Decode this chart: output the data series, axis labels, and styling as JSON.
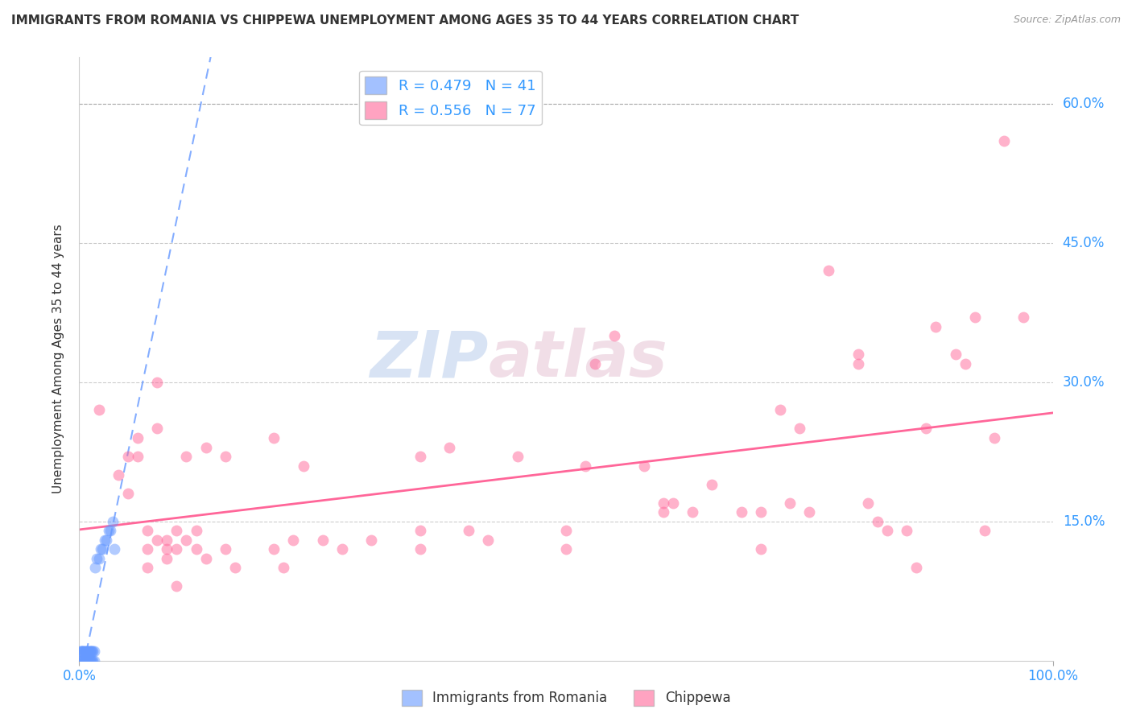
{
  "title": "IMMIGRANTS FROM ROMANIA VS CHIPPEWA UNEMPLOYMENT AMONG AGES 35 TO 44 YEARS CORRELATION CHART",
  "source": "Source: ZipAtlas.com",
  "ylabel": "Unemployment Among Ages 35 to 44 years",
  "xlim": [
    0,
    1.0
  ],
  "ylim": [
    0,
    0.65
  ],
  "xticks": [
    0.0,
    1.0
  ],
  "xticklabels": [
    "0.0%",
    "100.0%"
  ],
  "ytick_positions": [
    0.15,
    0.3,
    0.45,
    0.6
  ],
  "yticklabels_right": [
    "15.0%",
    "30.0%",
    "45.0%",
    "60.0%"
  ],
  "romania_color": "#6699ff",
  "chippewa_color": "#ff6699",
  "romania_R": 0.479,
  "romania_N": 41,
  "chippewa_R": 0.556,
  "chippewa_N": 77,
  "watermark_zip": "ZIP",
  "watermark_atlas": "atlas",
  "romania_points": [
    [
      0.001,
      0.0
    ],
    [
      0.002,
      0.0
    ],
    [
      0.003,
      0.0
    ],
    [
      0.004,
      0.0
    ],
    [
      0.005,
      0.0
    ],
    [
      0.006,
      0.0
    ],
    [
      0.007,
      0.0
    ],
    [
      0.008,
      0.0
    ],
    [
      0.009,
      0.0
    ],
    [
      0.01,
      0.0
    ],
    [
      0.011,
      0.0
    ],
    [
      0.012,
      0.0
    ],
    [
      0.013,
      0.0
    ],
    [
      0.014,
      0.0
    ],
    [
      0.015,
      0.0
    ],
    [
      0.001,
      0.01
    ],
    [
      0.002,
      0.01
    ],
    [
      0.003,
      0.01
    ],
    [
      0.004,
      0.01
    ],
    [
      0.005,
      0.01
    ],
    [
      0.006,
      0.01
    ],
    [
      0.007,
      0.01
    ],
    [
      0.008,
      0.01
    ],
    [
      0.009,
      0.01
    ],
    [
      0.01,
      0.01
    ],
    [
      0.011,
      0.01
    ],
    [
      0.012,
      0.01
    ],
    [
      0.013,
      0.01
    ],
    [
      0.014,
      0.01
    ],
    [
      0.015,
      0.01
    ],
    [
      0.016,
      0.1
    ],
    [
      0.018,
      0.11
    ],
    [
      0.02,
      0.11
    ],
    [
      0.022,
      0.12
    ],
    [
      0.024,
      0.12
    ],
    [
      0.026,
      0.13
    ],
    [
      0.028,
      0.13
    ],
    [
      0.03,
      0.14
    ],
    [
      0.032,
      0.14
    ],
    [
      0.034,
      0.15
    ],
    [
      0.036,
      0.12
    ]
  ],
  "chippewa_points": [
    [
      0.02,
      0.27
    ],
    [
      0.04,
      0.2
    ],
    [
      0.05,
      0.22
    ],
    [
      0.05,
      0.18
    ],
    [
      0.06,
      0.24
    ],
    [
      0.06,
      0.22
    ],
    [
      0.07,
      0.1
    ],
    [
      0.07,
      0.14
    ],
    [
      0.07,
      0.12
    ],
    [
      0.08,
      0.3
    ],
    [
      0.08,
      0.25
    ],
    [
      0.08,
      0.13
    ],
    [
      0.09,
      0.13
    ],
    [
      0.09,
      0.12
    ],
    [
      0.09,
      0.11
    ],
    [
      0.1,
      0.14
    ],
    [
      0.1,
      0.12
    ],
    [
      0.1,
      0.08
    ],
    [
      0.11,
      0.22
    ],
    [
      0.11,
      0.13
    ],
    [
      0.12,
      0.14
    ],
    [
      0.12,
      0.12
    ],
    [
      0.13,
      0.23
    ],
    [
      0.13,
      0.11
    ],
    [
      0.15,
      0.22
    ],
    [
      0.15,
      0.12
    ],
    [
      0.16,
      0.1
    ],
    [
      0.2,
      0.24
    ],
    [
      0.2,
      0.12
    ],
    [
      0.21,
      0.1
    ],
    [
      0.22,
      0.13
    ],
    [
      0.23,
      0.21
    ],
    [
      0.25,
      0.13
    ],
    [
      0.27,
      0.12
    ],
    [
      0.3,
      0.13
    ],
    [
      0.35,
      0.22
    ],
    [
      0.35,
      0.14
    ],
    [
      0.35,
      0.12
    ],
    [
      0.38,
      0.23
    ],
    [
      0.4,
      0.14
    ],
    [
      0.42,
      0.13
    ],
    [
      0.45,
      0.22
    ],
    [
      0.5,
      0.14
    ],
    [
      0.5,
      0.12
    ],
    [
      0.52,
      0.21
    ],
    [
      0.53,
      0.32
    ],
    [
      0.55,
      0.35
    ],
    [
      0.58,
      0.21
    ],
    [
      0.6,
      0.16
    ],
    [
      0.6,
      0.17
    ],
    [
      0.61,
      0.17
    ],
    [
      0.63,
      0.16
    ],
    [
      0.65,
      0.19
    ],
    [
      0.68,
      0.16
    ],
    [
      0.7,
      0.16
    ],
    [
      0.7,
      0.12
    ],
    [
      0.72,
      0.27
    ],
    [
      0.73,
      0.17
    ],
    [
      0.74,
      0.25
    ],
    [
      0.75,
      0.16
    ],
    [
      0.77,
      0.42
    ],
    [
      0.8,
      0.32
    ],
    [
      0.8,
      0.33
    ],
    [
      0.81,
      0.17
    ],
    [
      0.82,
      0.15
    ],
    [
      0.83,
      0.14
    ],
    [
      0.85,
      0.14
    ],
    [
      0.86,
      0.1
    ],
    [
      0.87,
      0.25
    ],
    [
      0.88,
      0.36
    ],
    [
      0.9,
      0.33
    ],
    [
      0.91,
      0.32
    ],
    [
      0.92,
      0.37
    ],
    [
      0.93,
      0.14
    ],
    [
      0.94,
      0.24
    ],
    [
      0.95,
      0.56
    ],
    [
      0.97,
      0.37
    ]
  ],
  "romania_line": [
    0.0,
    0.07,
    0.62
  ],
  "chippewa_line_start_y": 0.09,
  "chippewa_line_end_y": 0.27,
  "grid_color": "#cccccc",
  "grid_top_color": "#aaaaaa",
  "dot_size": 100,
  "dot_alpha": 0.5
}
